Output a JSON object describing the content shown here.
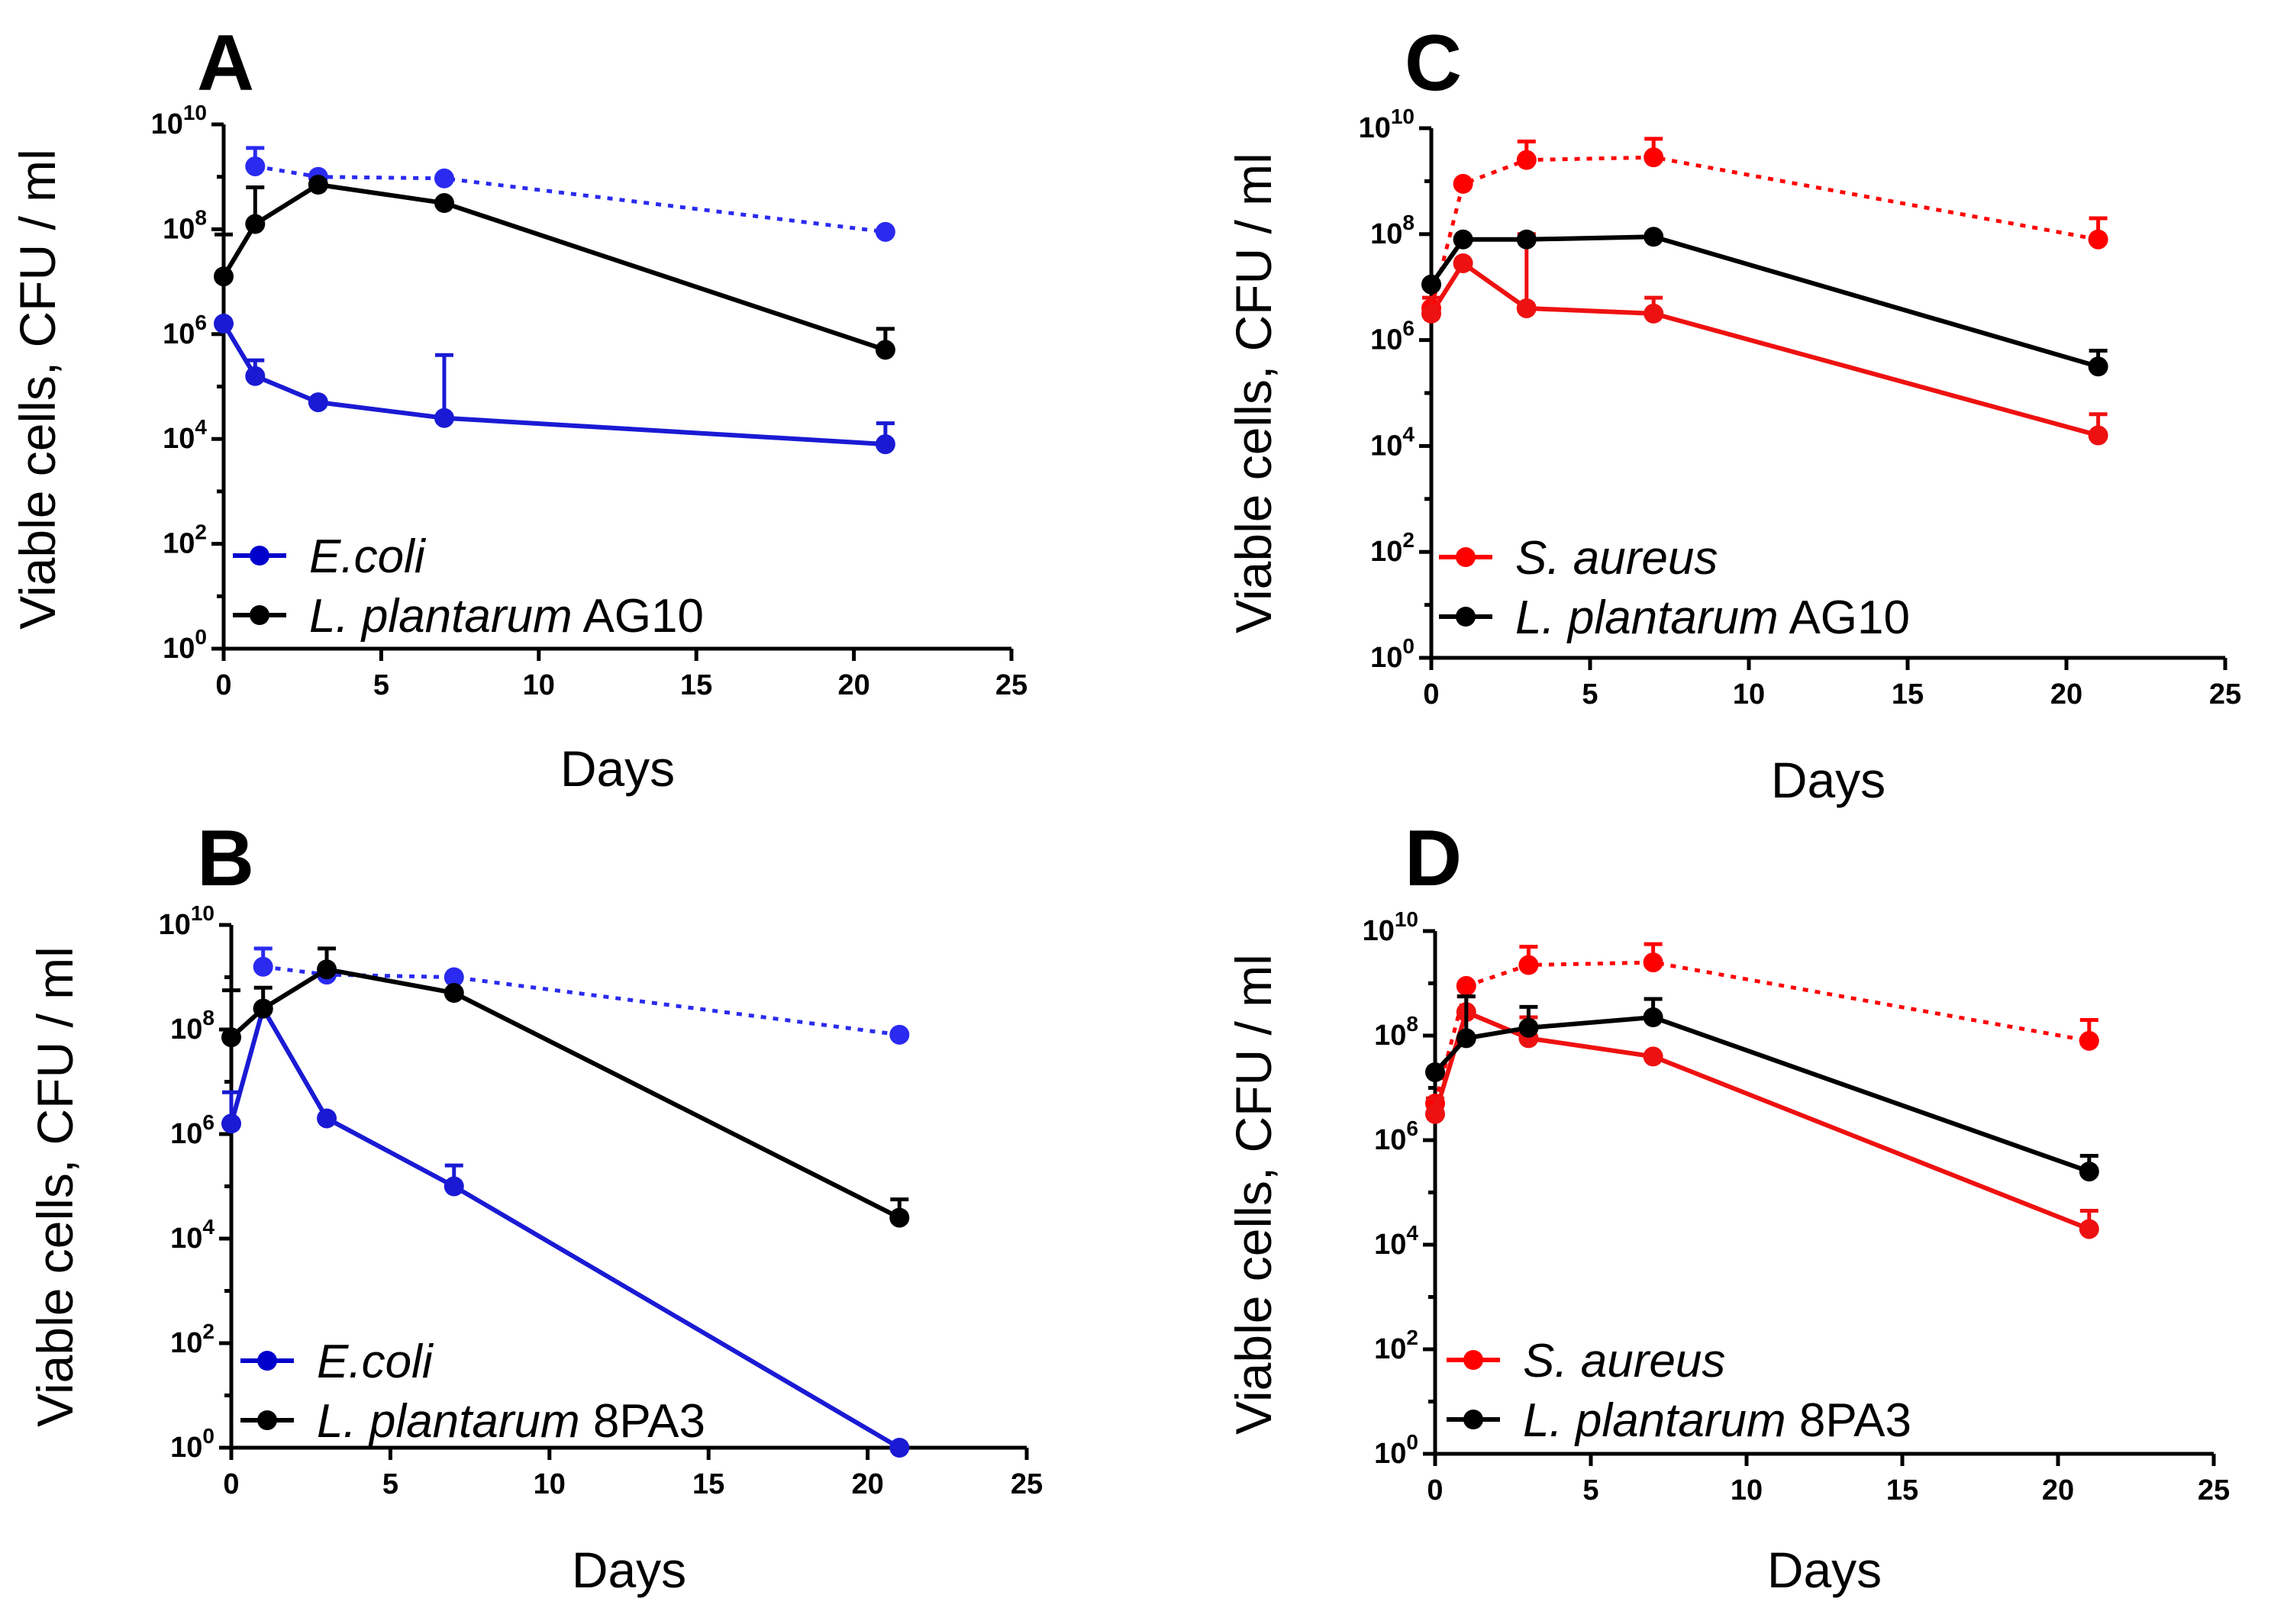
{
  "chart_data": [
    {
      "type": "line",
      "panel": "A",
      "xlabel": "Days",
      "ylabel": "Viable cells, CFU / ml",
      "xlim": [
        0,
        25
      ],
      "x_ticks": [
        "0",
        "5",
        "10",
        "15",
        "20",
        "25"
      ],
      "y_scale": "log10",
      "ylim_exp": [
        0,
        10
      ],
      "y_ticks": [
        {
          "base": "10",
          "exp": "0"
        },
        {
          "base": "10",
          "exp": "2"
        },
        {
          "base": "10",
          "exp": "4"
        },
        {
          "base": "10",
          "exp": "6"
        },
        {
          "base": "10",
          "exp": "8"
        },
        {
          "base": "10",
          "exp": "10"
        }
      ],
      "legend": [
        {
          "italic": "E.coli",
          "plain": "",
          "color": "#0000cc"
        },
        {
          "italic": "L. plantarum",
          "plain": " AG10",
          "color": "#000000"
        }
      ],
      "series": [
        {
          "name": "E.coli",
          "color": "#1a1ad4",
          "dashed": false,
          "x": [
            0,
            1,
            3,
            7,
            21
          ],
          "log10_cfu": [
            6.2,
            5.2,
            4.7,
            4.4,
            3.9
          ],
          "err_log10": [
            0.0,
            0.3,
            0.0,
            1.2,
            0.4
          ]
        },
        {
          "name": "L. plantarum AG10",
          "color": "#000000",
          "dashed": false,
          "x": [
            0,
            1,
            3,
            7,
            21
          ],
          "log10_cfu": [
            7.1,
            8.1,
            8.85,
            8.5,
            5.7
          ],
          "err_log10": [
            0.8,
            0.7,
            0.0,
            0.0,
            0.4
          ]
        },
        {
          "name": "E.coli (dotted)",
          "color": "#2a2af0",
          "dashed": true,
          "x": [
            1,
            3,
            7,
            21
          ],
          "log10_cfu": [
            9.2,
            9.0,
            8.97,
            7.95
          ],
          "err_log10": [
            0.35,
            0.0,
            0.0,
            0.0
          ]
        }
      ]
    },
    {
      "type": "line",
      "panel": "B",
      "xlabel": "Days",
      "ylabel": "Viable cells, CFU / ml",
      "xlim": [
        0,
        25
      ],
      "x_ticks": [
        "0",
        "5",
        "10",
        "15",
        "20",
        "25"
      ],
      "y_scale": "log10",
      "ylim_exp": [
        0,
        10
      ],
      "y_ticks": [
        {
          "base": "10",
          "exp": "0"
        },
        {
          "base": "10",
          "exp": "2"
        },
        {
          "base": "10",
          "exp": "4"
        },
        {
          "base": "10",
          "exp": "6"
        },
        {
          "base": "10",
          "exp": "8"
        },
        {
          "base": "10",
          "exp": "10"
        }
      ],
      "legend": [
        {
          "italic": "E.coli",
          "plain": "",
          "color": "#0000cc"
        },
        {
          "italic": "L. plantarum",
          "plain": " 8PA3",
          "color": "#000000"
        }
      ],
      "series": [
        {
          "name": "E.coli",
          "color": "#1a1ad4",
          "dashed": false,
          "x": [
            0,
            1,
            3,
            7,
            21
          ],
          "log10_cfu": [
            6.2,
            8.4,
            6.3,
            5.0,
            0.0
          ],
          "err_log10": [
            0.6,
            0.0,
            0.0,
            0.4,
            0.0
          ]
        },
        {
          "name": "L. plantarum 8PA3",
          "color": "#000000",
          "dashed": false,
          "x": [
            0,
            1,
            3,
            7,
            21
          ],
          "log10_cfu": [
            7.85,
            8.4,
            9.15,
            8.7,
            4.4
          ],
          "err_log10": [
            0.9,
            0.4,
            0.4,
            0.0,
            0.35
          ]
        },
        {
          "name": "E.coli (dotted)",
          "color": "#2a2af0",
          "dashed": true,
          "x": [
            1,
            3,
            7,
            21
          ],
          "log10_cfu": [
            9.2,
            9.05,
            9.0,
            7.9
          ],
          "err_log10": [
            0.35,
            0.0,
            0.0,
            0.0
          ]
        }
      ]
    },
    {
      "type": "line",
      "panel": "C",
      "xlabel": "Days",
      "ylabel": "Viable cells, CFU / ml",
      "xlim": [
        0,
        25
      ],
      "x_ticks": [
        "0",
        "5",
        "10",
        "15",
        "20",
        "25"
      ],
      "y_scale": "log10",
      "ylim_exp": [
        0,
        10
      ],
      "y_ticks": [
        {
          "base": "10",
          "exp": "0"
        },
        {
          "base": "10",
          "exp": "2"
        },
        {
          "base": "10",
          "exp": "4"
        },
        {
          "base": "10",
          "exp": "6"
        },
        {
          "base": "10",
          "exp": "8"
        },
        {
          "base": "10",
          "exp": "10"
        }
      ],
      "legend": [
        {
          "italic": "S. aureus",
          "plain": "",
          "color": "#ff0000"
        },
        {
          "italic": "L. plantarum",
          "plain": " AG10",
          "color": "#000000"
        }
      ],
      "series": [
        {
          "name": "S. aureus",
          "color": "#ee1111",
          "dashed": false,
          "x": [
            0,
            1,
            3,
            7,
            21
          ],
          "log10_cfu": [
            6.5,
            7.45,
            6.6,
            6.5,
            4.2
          ],
          "err_log10": [
            0.3,
            0.0,
            1.4,
            0.3,
            0.4
          ]
        },
        {
          "name": "L. plantarum AG10",
          "color": "#000000",
          "dashed": false,
          "x": [
            0,
            1,
            3,
            7,
            21
          ],
          "log10_cfu": [
            7.05,
            7.9,
            7.9,
            7.95,
            5.5
          ],
          "err_log10": [
            0.0,
            0.0,
            0.0,
            0.0,
            0.3
          ]
        },
        {
          "name": "S. aureus (dotted)",
          "color": "#ff0000",
          "dashed": true,
          "x": [
            0,
            1,
            3,
            7,
            21
          ],
          "log10_cfu": [
            6.6,
            8.95,
            9.4,
            9.45,
            7.9
          ],
          "err_log10": [
            0.0,
            0.0,
            0.35,
            0.35,
            0.4
          ]
        }
      ]
    },
    {
      "type": "line",
      "panel": "D",
      "xlabel": "Days",
      "ylabel": "Viable cells, CFU / ml",
      "xlim": [
        0,
        25
      ],
      "x_ticks": [
        "0",
        "5",
        "10",
        "15",
        "20",
        "25"
      ],
      "y_scale": "log10",
      "ylim_exp": [
        0,
        10
      ],
      "y_ticks": [
        {
          "base": "10",
          "exp": "0"
        },
        {
          "base": "10",
          "exp": "2"
        },
        {
          "base": "10",
          "exp": "4"
        },
        {
          "base": "10",
          "exp": "6"
        },
        {
          "base": "10",
          "exp": "8"
        },
        {
          "base": "10",
          "exp": "10"
        }
      ],
      "legend": [
        {
          "italic": "S. aureus",
          "plain": "",
          "color": "#ff0000"
        },
        {
          "italic": "L. plantarum",
          "plain": " 8PA3",
          "color": "#000000"
        }
      ],
      "series": [
        {
          "name": "S. aureus",
          "color": "#ee1111",
          "dashed": false,
          "x": [
            0,
            1,
            3,
            7,
            21
          ],
          "log10_cfu": [
            6.5,
            8.45,
            7.95,
            7.6,
            4.3
          ],
          "err_log10": [
            0.3,
            0.3,
            0.4,
            0.0,
            0.35
          ]
        },
        {
          "name": "L. plantarum 8PA3",
          "color": "#000000",
          "dashed": false,
          "x": [
            0,
            1,
            3,
            7,
            21
          ],
          "log10_cfu": [
            7.3,
            7.95,
            8.15,
            8.35,
            5.4
          ],
          "err_log10": [
            0.0,
            0.8,
            0.4,
            0.35,
            0.3
          ]
        },
        {
          "name": "S. aureus (dotted)",
          "color": "#ff0000",
          "dashed": true,
          "x": [
            0,
            1,
            3,
            7,
            21
          ],
          "log10_cfu": [
            6.7,
            8.95,
            9.35,
            9.4,
            7.9
          ],
          "err_log10": [
            0.0,
            0.0,
            0.35,
            0.35,
            0.4
          ]
        }
      ]
    }
  ]
}
